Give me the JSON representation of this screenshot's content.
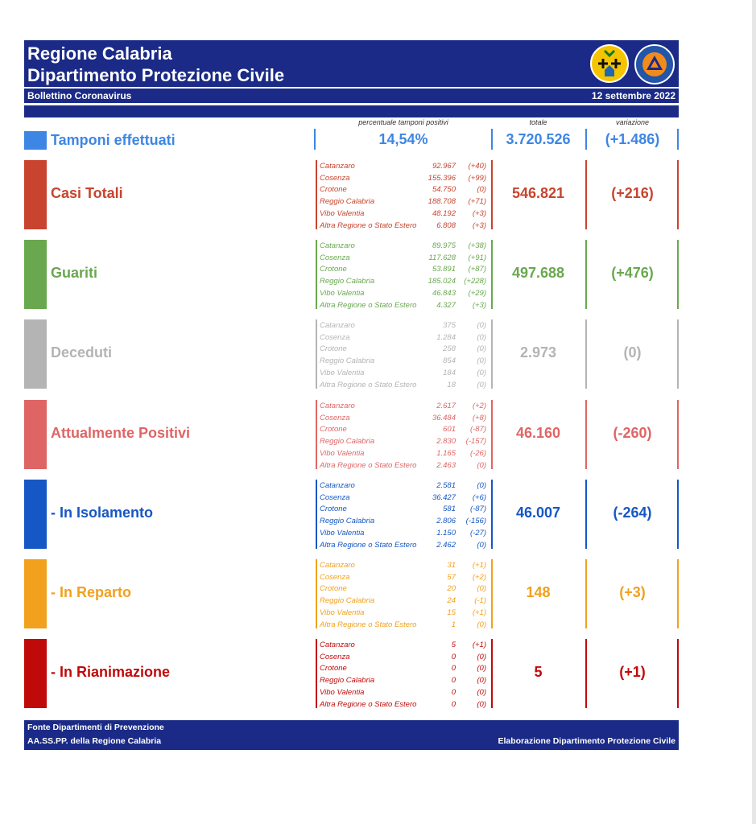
{
  "header": {
    "title_line1": "Regione Calabria",
    "title_line2": "Dipartimento Protezione Civile",
    "subtitle": "Bollettino Coronavirus",
    "date": "12 settembre 2022"
  },
  "columns": {
    "percent_header": "percentuale tamponi positivi",
    "total_header": "totale",
    "variation_header": "variazione"
  },
  "tamponi": {
    "label": "Tamponi effettuati",
    "percent": "14,54%",
    "total": "3.720.526",
    "variation": "(+1.486)",
    "color": "#3d86e4"
  },
  "sections": [
    {
      "label": "Casi Totali",
      "color": "#c8442e",
      "total": "546.821",
      "variation": "(+216)",
      "rows": [
        {
          "province": "Catanzaro",
          "value": "92.967",
          "delta": "(+40)"
        },
        {
          "province": "Cosenza",
          "value": "155.396",
          "delta": "(+99)"
        },
        {
          "province": "Crotone",
          "value": "54.750",
          "delta": "(0)"
        },
        {
          "province": "Reggio Calabria",
          "value": "188.708",
          "delta": "(+71)"
        },
        {
          "province": "Vibo Valentia",
          "value": "48.192",
          "delta": "(+3)"
        },
        {
          "province": "Altra Regione o Stato Estero",
          "value": "6.808",
          "delta": "(+3)"
        }
      ]
    },
    {
      "label": "Guariti",
      "color": "#69a84f",
      "total": "497.688",
      "variation": "(+476)",
      "rows": [
        {
          "province": "Catanzaro",
          "value": "89.975",
          "delta": "(+38)"
        },
        {
          "province": "Cosenza",
          "value": "117.628",
          "delta": "(+91)"
        },
        {
          "province": "Crotone",
          "value": "53.891",
          "delta": "(+87)"
        },
        {
          "province": "Reggio Calabria",
          "value": "185.024",
          "delta": "(+228)"
        },
        {
          "province": "Vibo Valentia",
          "value": "46.843",
          "delta": "(+29)"
        },
        {
          "province": "Altra Regione o Stato Estero",
          "value": "4.327",
          "delta": "(+3)"
        }
      ]
    },
    {
      "label": "Deceduti",
      "color": "#b4b4b4",
      "total": "2.973",
      "variation": "(0)",
      "rows": [
        {
          "province": "Catanzaro",
          "value": "375",
          "delta": "(0)"
        },
        {
          "province": "Cosenza",
          "value": "1.284",
          "delta": "(0)"
        },
        {
          "province": "Crotone",
          "value": "258",
          "delta": "(0)"
        },
        {
          "province": "Reggio Calabria",
          "value": "854",
          "delta": "(0)"
        },
        {
          "province": "Vibo Valentia",
          "value": "184",
          "delta": "(0)"
        },
        {
          "province": "Altra Regione o Stato Estero",
          "value": "18",
          "delta": "(0)"
        }
      ]
    },
    {
      "label": "Attualmente Positivi",
      "color": "#df6565",
      "total": "46.160",
      "variation": "(-260)",
      "rows": [
        {
          "province": "Catanzaro",
          "value": "2.617",
          "delta": "(+2)"
        },
        {
          "province": "Cosenza",
          "value": "36.484",
          "delta": "(+8)"
        },
        {
          "province": "Crotone",
          "value": "601",
          "delta": "(-87)"
        },
        {
          "province": "Reggio Calabria",
          "value": "2.830",
          "delta": "(-157)"
        },
        {
          "province": "Vibo Valentia",
          "value": "1.165",
          "delta": "(-26)"
        },
        {
          "province": "Altra Regione o Stato Estero",
          "value": "2.463",
          "delta": "(0)"
        }
      ]
    },
    {
      "label": "- In Isolamento",
      "color": "#1557c4",
      "total": "46.007",
      "variation": "(-264)",
      "rows": [
        {
          "province": "Catanzaro",
          "value": "2.581",
          "delta": "(0)"
        },
        {
          "province": "Cosenza",
          "value": "36.427",
          "delta": "(+6)"
        },
        {
          "province": "Crotone",
          "value": "581",
          "delta": "(-87)"
        },
        {
          "province": "Reggio Calabria",
          "value": "2.806",
          "delta": "(-156)"
        },
        {
          "province": "Vibo Valentia",
          "value": "1.150",
          "delta": "(-27)"
        },
        {
          "province": "Altra Regione o Stato Estero",
          "value": "2.462",
          "delta": "(0)"
        }
      ]
    },
    {
      "label": "- In Reparto",
      "color": "#f1a11e",
      "total": "148",
      "variation": "(+3)",
      "rows": [
        {
          "province": "Catanzaro",
          "value": "31",
          "delta": "(+1)"
        },
        {
          "province": "Cosenza",
          "value": "57",
          "delta": "(+2)"
        },
        {
          "province": "Crotone",
          "value": "20",
          "delta": "(0)"
        },
        {
          "province": "Reggio Calabria",
          "value": "24",
          "delta": "(-1)"
        },
        {
          "province": "Vibo Valentia",
          "value": "15",
          "delta": "(+1)"
        },
        {
          "province": "Altra Regione o Stato Estero",
          "value": "1",
          "delta": "(0)"
        }
      ]
    },
    {
      "label": "- In Rianimazione",
      "color": "#c00a0a",
      "total": "5",
      "variation": "(+1)",
      "rows": [
        {
          "province": "Catanzaro",
          "value": "5",
          "delta": "(+1)"
        },
        {
          "province": "Cosenza",
          "value": "0",
          "delta": "(0)"
        },
        {
          "province": "Crotone",
          "value": "0",
          "delta": "(0)"
        },
        {
          "province": "Reggio Calabria",
          "value": "0",
          "delta": "(0)"
        },
        {
          "province": "Vibo Valentia",
          "value": "0",
          "delta": "(0)"
        },
        {
          "province": "Altra Regione o Stato Estero",
          "value": "0",
          "delta": "(0)"
        }
      ]
    }
  ],
  "footer": {
    "source_line1": "Fonte Dipartimenti di Prevenzione",
    "source_line2": "AA.SS.PP.  della Regione Calabria",
    "credit": "Elaborazione Dipartimento Protezione Civile"
  }
}
